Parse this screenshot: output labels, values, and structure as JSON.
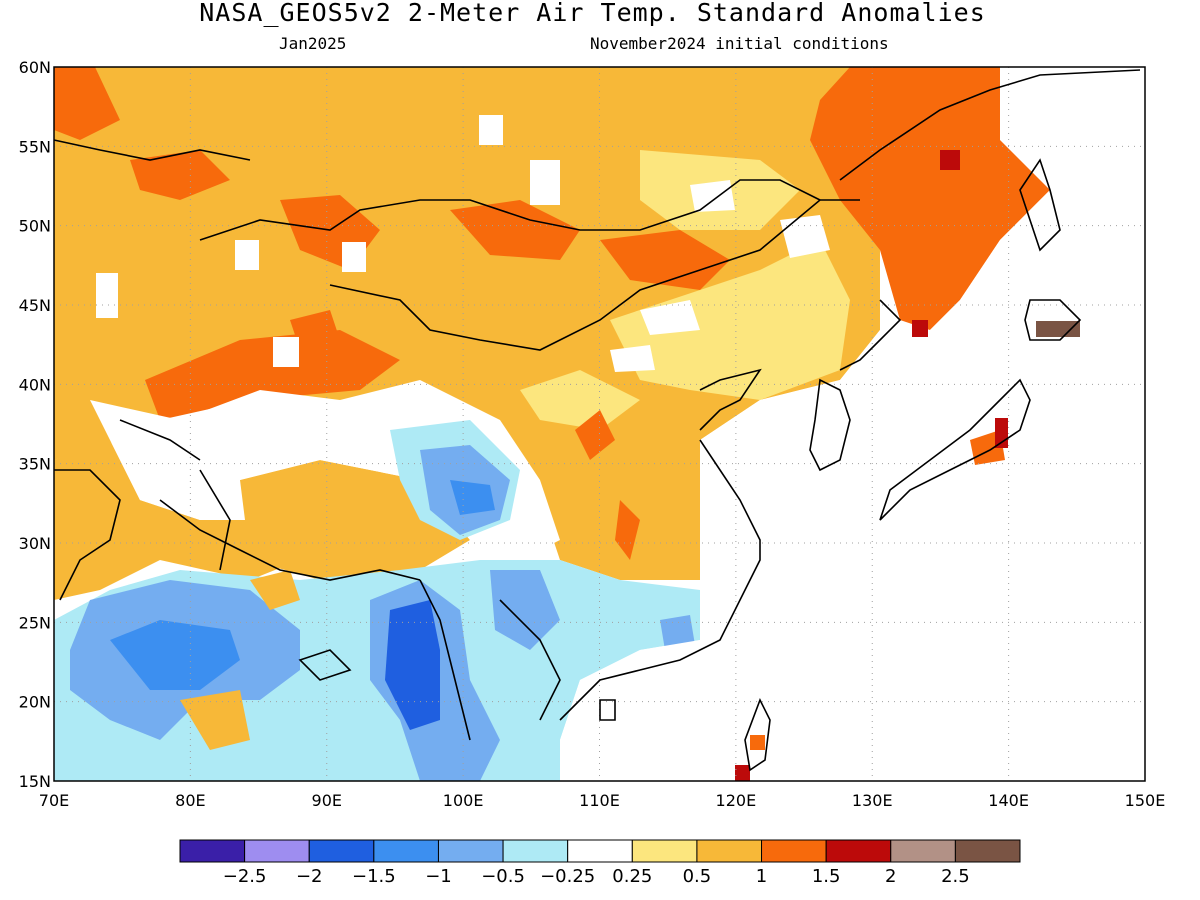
{
  "header": {
    "title": "NASA_GEOS5v2 2-Meter Air Temp. Standard Anomalies",
    "valid_month": "Jan2025",
    "init_conditions": "November2024 initial conditions"
  },
  "map": {
    "lon_range": [
      70,
      150
    ],
    "lat_range": [
      15,
      60
    ],
    "lon_ticks": [
      "70E",
      "80E",
      "90E",
      "100E",
      "110E",
      "120E",
      "130E",
      "140E",
      "150E"
    ],
    "lat_ticks": [
      "15N",
      "20N",
      "25N",
      "30N",
      "35N",
      "40N",
      "45N",
      "50N",
      "55N",
      "60N"
    ],
    "grid": "dotted",
    "anomaly_regions": [
      {
        "name": "mongolia-siberia-warm",
        "level": 1
      },
      {
        "name": "far-east-russia-warm",
        "level": 1.5
      },
      {
        "name": "north-china-warm",
        "level": 0.5
      },
      {
        "name": "tibet-cool",
        "level": -1
      },
      {
        "name": "indochina-cool",
        "level": -1.5
      },
      {
        "name": "india-cool",
        "level": -1
      },
      {
        "name": "hokkaido-strong-warm",
        "level": 2.5
      }
    ]
  },
  "colorbar": {
    "colors": [
      "#3a1fa8",
      "#9e8df0",
      "#1f5fe0",
      "#3c8ff0",
      "#74adf0",
      "#aeeaf5",
      "#ffffff",
      "#fce67e",
      "#f7b838",
      "#f76a0c",
      "#bc0a0a",
      "#b29186",
      "#7a5444"
    ],
    "labels": [
      "−2.5",
      "−2",
      "−1.5",
      "−1",
      "−0.5",
      "−0.25",
      "0.25",
      "0.5",
      "1",
      "1.5",
      "2",
      "2.5"
    ]
  }
}
